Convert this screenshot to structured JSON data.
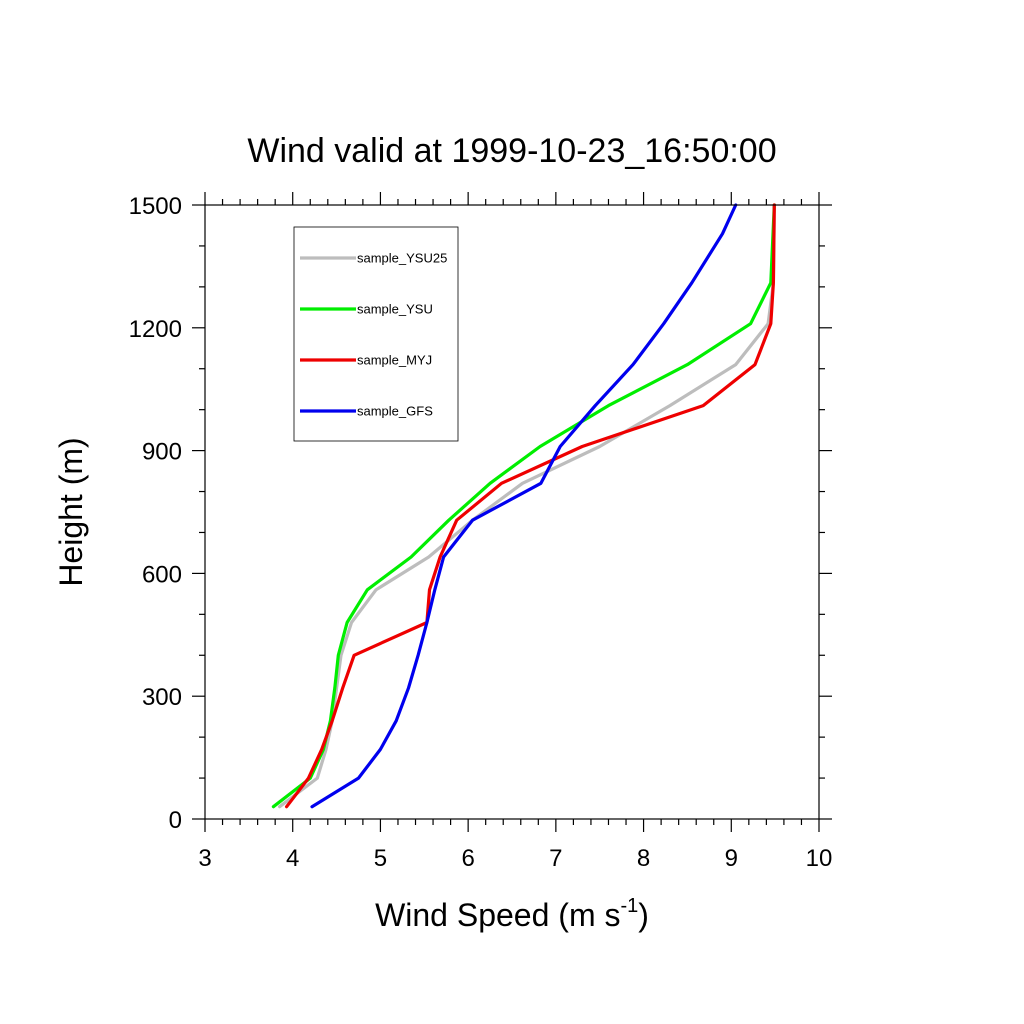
{
  "chart_data": {
    "type": "line",
    "title": "Wind valid at 1999-10-23_16:50:00",
    "xlabel": "Wind Speed (m s",
    "xlabel_superscript": "-1",
    "xlabel_suffix": ")",
    "ylabel": "Height (m)",
    "xlim": [
      3,
      10
    ],
    "ylim": [
      0,
      1500
    ],
    "xticks": [
      "3",
      "4",
      "5",
      "6",
      "7",
      "8",
      "9",
      "10"
    ],
    "yticks": [
      "0",
      "300",
      "600",
      "900",
      "1200",
      "1500"
    ],
    "grid": false,
    "legend": "upper-left",
    "series": [
      {
        "name": "sample_YSU25",
        "color": "#bdbdbd",
        "x": [
          3.85,
          4.28,
          4.38,
          4.45,
          4.5,
          4.55,
          4.67,
          4.95,
          5.55,
          6.05,
          6.62,
          7.5,
          8.3,
          9.05,
          9.42,
          9.48,
          9.49
        ],
        "y": [
          30,
          100,
          170,
          240,
          320,
          400,
          480,
          560,
          640,
          730,
          820,
          910,
          1010,
          1110,
          1210,
          1310,
          1500
        ]
      },
      {
        "name": "sample_YSU",
        "color": "#00ee00",
        "x": [
          3.78,
          4.2,
          4.35,
          4.43,
          4.48,
          4.52,
          4.62,
          4.85,
          5.35,
          5.78,
          6.25,
          6.82,
          7.6,
          8.5,
          9.22,
          9.45,
          9.49
        ],
        "y": [
          30,
          100,
          170,
          240,
          320,
          400,
          480,
          560,
          640,
          730,
          820,
          910,
          1010,
          1110,
          1210,
          1310,
          1500
        ]
      },
      {
        "name": "sample_MYJ",
        "color": "#ee0000",
        "x": [
          3.93,
          4.18,
          4.33,
          4.45,
          4.57,
          4.7,
          5.53,
          5.56,
          5.68,
          5.87,
          6.38,
          7.3,
          8.68,
          9.27,
          9.45,
          9.48,
          9.49
        ],
        "y": [
          30,
          100,
          170,
          240,
          320,
          400,
          480,
          560,
          640,
          730,
          820,
          910,
          1010,
          1110,
          1210,
          1310,
          1500
        ]
      },
      {
        "name": "sample_GFS",
        "color": "#0000ee",
        "x": [
          4.22,
          4.75,
          5.0,
          5.18,
          5.32,
          5.43,
          5.53,
          5.62,
          5.72,
          6.05,
          6.83,
          7.05,
          7.45,
          7.88,
          8.23,
          8.55,
          8.9,
          9.05
        ],
        "y": [
          30,
          100,
          170,
          240,
          320,
          400,
          480,
          560,
          640,
          730,
          820,
          910,
          1010,
          1110,
          1210,
          1310,
          1430,
          1500
        ]
      }
    ]
  }
}
